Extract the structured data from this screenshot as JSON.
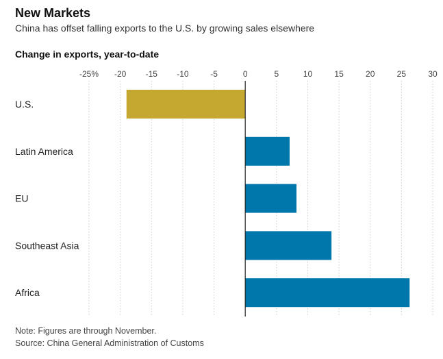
{
  "header": {
    "title": "New Markets",
    "subtitle": "China has offset falling exports to the U.S. by growing sales elsewhere",
    "chart_label": "Change in exports, year-to-date"
  },
  "footer": {
    "note": "Note: Figures are through November.",
    "source": "Source: China General Administration of Customs"
  },
  "colors": {
    "us_bar": "#c4a82f",
    "other_bar": "#0077aa",
    "grid": "#cccccc",
    "zero_line": "#222222"
  },
  "chart_data": {
    "type": "bar",
    "orientation": "horizontal",
    "title": "",
    "xlabel": "",
    "ylabel": "",
    "categories": [
      "U.S.",
      "Latin America",
      "EU",
      "Southeast Asia",
      "Africa"
    ],
    "values": [
      -19,
      7.1,
      8.2,
      13.8,
      26.3
    ],
    "xlim": [
      -25,
      30
    ],
    "x_ticks": [
      -25,
      -20,
      -15,
      -10,
      -5,
      0,
      5,
      10,
      15,
      20,
      25,
      30
    ],
    "x_tick_labels": [
      "-25%",
      "-20",
      "-15",
      "-10",
      "-5",
      "0",
      "5",
      "10",
      "15",
      "20",
      "25",
      "30"
    ],
    "grid": true,
    "legend": "none"
  }
}
